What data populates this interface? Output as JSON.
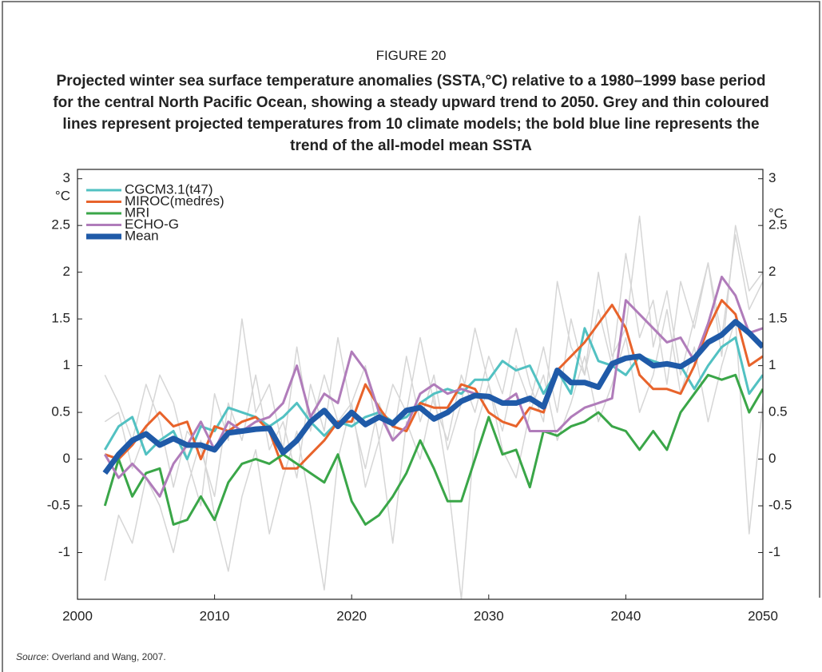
{
  "chart_data": {
    "type": "line",
    "figure_label": "FIGURE 20",
    "title": "Projected winter sea surface temperature anomalies (SSTA,°C) relative to a 1980–1999 base period for the central North Pacific Ocean, showing a steady upward trend to 2050. Grey and thin coloured lines represent projected temperatures from 10 climate models; the bold blue line represents the trend of the all-model mean SSTA",
    "y_unit": "°C",
    "source_label": "Source",
    "source_text": ": Overland and Wang, 2007.",
    "x": [
      2002,
      2003,
      2004,
      2005,
      2006,
      2007,
      2008,
      2009,
      2010,
      2011,
      2012,
      2013,
      2014,
      2015,
      2016,
      2017,
      2018,
      2019,
      2020,
      2021,
      2022,
      2023,
      2024,
      2025,
      2026,
      2027,
      2028,
      2029,
      2030,
      2031,
      2032,
      2033,
      2034,
      2035,
      2036,
      2037,
      2038,
      2039,
      2040,
      2041,
      2042,
      2043,
      2044,
      2045,
      2046,
      2047,
      2048,
      2049,
      2050
    ],
    "xlim": [
      2000,
      2050
    ],
    "xticks": [
      2000,
      2010,
      2020,
      2030,
      2040,
      2050
    ],
    "ylim": [
      -1.5,
      3.1
    ],
    "yticks": [
      -1,
      -0.5,
      0,
      0.5,
      1,
      1.5,
      2,
      2.5,
      3
    ],
    "legend": "upper left",
    "series": [
      {
        "color": "#d6d6d6",
        "values": [
          0.9,
          0.6,
          0.2,
          0.8,
          0.4,
          -0.3,
          0.3,
          0.1,
          -0.4,
          0.6,
          0.2,
          0.9,
          0.1,
          0.4,
          -0.2,
          0.8,
          0.3,
          1.3,
          0.5,
          -0.1,
          0.6,
          0.2,
          1.1,
          0.4,
          0.9,
          0.1,
          0.6,
          1.4,
          0.8,
          0.3,
          1.0,
          0.6,
          1.2,
          0.5,
          1.5,
          0.9,
          2.0,
          1.1,
          1.4,
          2.6,
          1.2,
          1.8,
          0.9,
          1.5,
          2.1,
          1.3,
          2.4,
          1.6,
          1.9
        ]
      },
      {
        "color": "#d6d6d6",
        "values": [
          -1.3,
          -0.6,
          -0.9,
          -0.2,
          -0.5,
          -1.0,
          -0.3,
          0.2,
          -0.6,
          -1.2,
          -0.4,
          0.1,
          -0.8,
          -0.2,
          0.3,
          -0.5,
          -1.4,
          0.0,
          0.6,
          -0.3,
          0.2,
          -0.9,
          0.4,
          0.0,
          0.7,
          -0.2,
          -1.5,
          0.3,
          0.8,
          0.1,
          -0.2,
          0.5,
          0.9,
          0.2,
          0.6,
          1.1,
          0.4,
          0.8,
          1.3,
          0.5,
          0.9,
          1.6,
          0.7,
          1.2,
          0.4,
          1.0,
          1.5,
          -0.8,
          0.6
        ]
      },
      {
        "color": "#d6d6d6",
        "values": [
          0.4,
          0.5,
          -0.1,
          0.3,
          0.9,
          0.6,
          0.0,
          -0.5,
          0.7,
          0.2,
          1.5,
          0.5,
          0.8,
          0.1,
          1.2,
          0.3,
          0.9,
          0.4,
          0.6,
          1.0,
          0.2,
          0.8,
          0.5,
          1.3,
          0.6,
          0.2,
          0.9,
          0.5,
          1.1,
          0.7,
          1.4,
          0.8,
          0.4,
          1.9,
          1.2,
          0.9,
          1.6,
          1.0,
          2.2,
          1.3,
          1.7,
          0.8,
          1.9,
          1.4,
          2.1,
          1.1,
          2.5,
          1.8,
          2.0
        ]
      },
      {
        "name": "CGCM3.1(t47)",
        "color": "#52c1c2",
        "values": [
          0.1,
          0.35,
          0.45,
          0.05,
          0.2,
          0.3,
          0.0,
          0.35,
          0.3,
          0.55,
          0.5,
          0.45,
          0.35,
          0.45,
          0.6,
          0.4,
          0.25,
          0.4,
          0.35,
          0.45,
          0.5,
          0.4,
          0.45,
          0.6,
          0.7,
          0.75,
          0.7,
          0.85,
          0.85,
          1.05,
          0.95,
          1.0,
          0.7,
          0.95,
          0.7,
          1.4,
          1.05,
          1.0,
          0.9,
          1.1,
          1.05,
          1.0,
          1.0,
          0.75,
          1.0,
          1.2,
          1.3,
          0.7,
          0.9
        ]
      },
      {
        "name": "MIROC(medres)",
        "color": "#e8632b",
        "values": [
          0.05,
          0.0,
          0.15,
          0.35,
          0.5,
          0.35,
          0.4,
          0.0,
          0.35,
          0.3,
          0.4,
          0.45,
          0.3,
          -0.1,
          -0.1,
          0.05,
          0.2,
          0.4,
          0.4,
          0.8,
          0.55,
          0.35,
          0.3,
          0.6,
          0.55,
          0.55,
          0.8,
          0.75,
          0.5,
          0.4,
          0.35,
          0.55,
          0.5,
          0.95,
          1.1,
          1.25,
          1.45,
          1.65,
          1.4,
          0.9,
          0.75,
          0.75,
          0.7,
          1.0,
          1.4,
          1.7,
          1.55,
          1.0,
          1.1
        ]
      },
      {
        "name": "MRI",
        "color": "#3aa648",
        "values": [
          -0.5,
          0.0,
          -0.4,
          -0.15,
          -0.1,
          -0.7,
          -0.65,
          -0.4,
          -0.65,
          -0.25,
          -0.05,
          0.0,
          -0.05,
          0.05,
          -0.05,
          -0.15,
          -0.25,
          0.05,
          -0.45,
          -0.7,
          -0.6,
          -0.4,
          -0.15,
          0.2,
          -0.1,
          -0.45,
          -0.45,
          0.0,
          0.45,
          0.05,
          0.1,
          -0.3,
          0.3,
          0.25,
          0.35,
          0.4,
          0.5,
          0.35,
          0.3,
          0.1,
          0.3,
          0.1,
          0.5,
          0.7,
          0.9,
          0.85,
          0.9,
          0.5,
          0.75
        ]
      },
      {
        "name": "ECHO-G",
        "color": "#b07cba",
        "values": [
          0.05,
          -0.2,
          -0.05,
          -0.2,
          -0.4,
          -0.05,
          0.15,
          0.4,
          0.1,
          0.4,
          0.3,
          0.4,
          0.45,
          0.6,
          1.0,
          0.45,
          0.7,
          0.6,
          1.15,
          0.95,
          0.5,
          0.2,
          0.35,
          0.7,
          0.8,
          0.7,
          0.75,
          0.7,
          0.65,
          0.6,
          0.7,
          0.3,
          0.3,
          0.3,
          0.45,
          0.55,
          0.6,
          0.65,
          1.7,
          1.55,
          1.4,
          1.25,
          1.3,
          1.05,
          1.45,
          1.95,
          1.75,
          1.35,
          1.4
        ]
      },
      {
        "name": "Mean",
        "color": "#1f5aa8",
        "bold": true,
        "values": [
          -0.15,
          0.05,
          0.2,
          0.27,
          0.15,
          0.22,
          0.15,
          0.15,
          0.1,
          0.28,
          0.3,
          0.32,
          0.33,
          0.07,
          0.2,
          0.4,
          0.52,
          0.35,
          0.5,
          0.37,
          0.45,
          0.38,
          0.52,
          0.55,
          0.43,
          0.5,
          0.62,
          0.68,
          0.67,
          0.6,
          0.6,
          0.65,
          0.56,
          0.95,
          0.82,
          0.82,
          0.77,
          1.02,
          1.08,
          1.1,
          1.0,
          1.02,
          0.99,
          1.08,
          1.25,
          1.33,
          1.47,
          1.35,
          1.2
        ]
      }
    ]
  }
}
